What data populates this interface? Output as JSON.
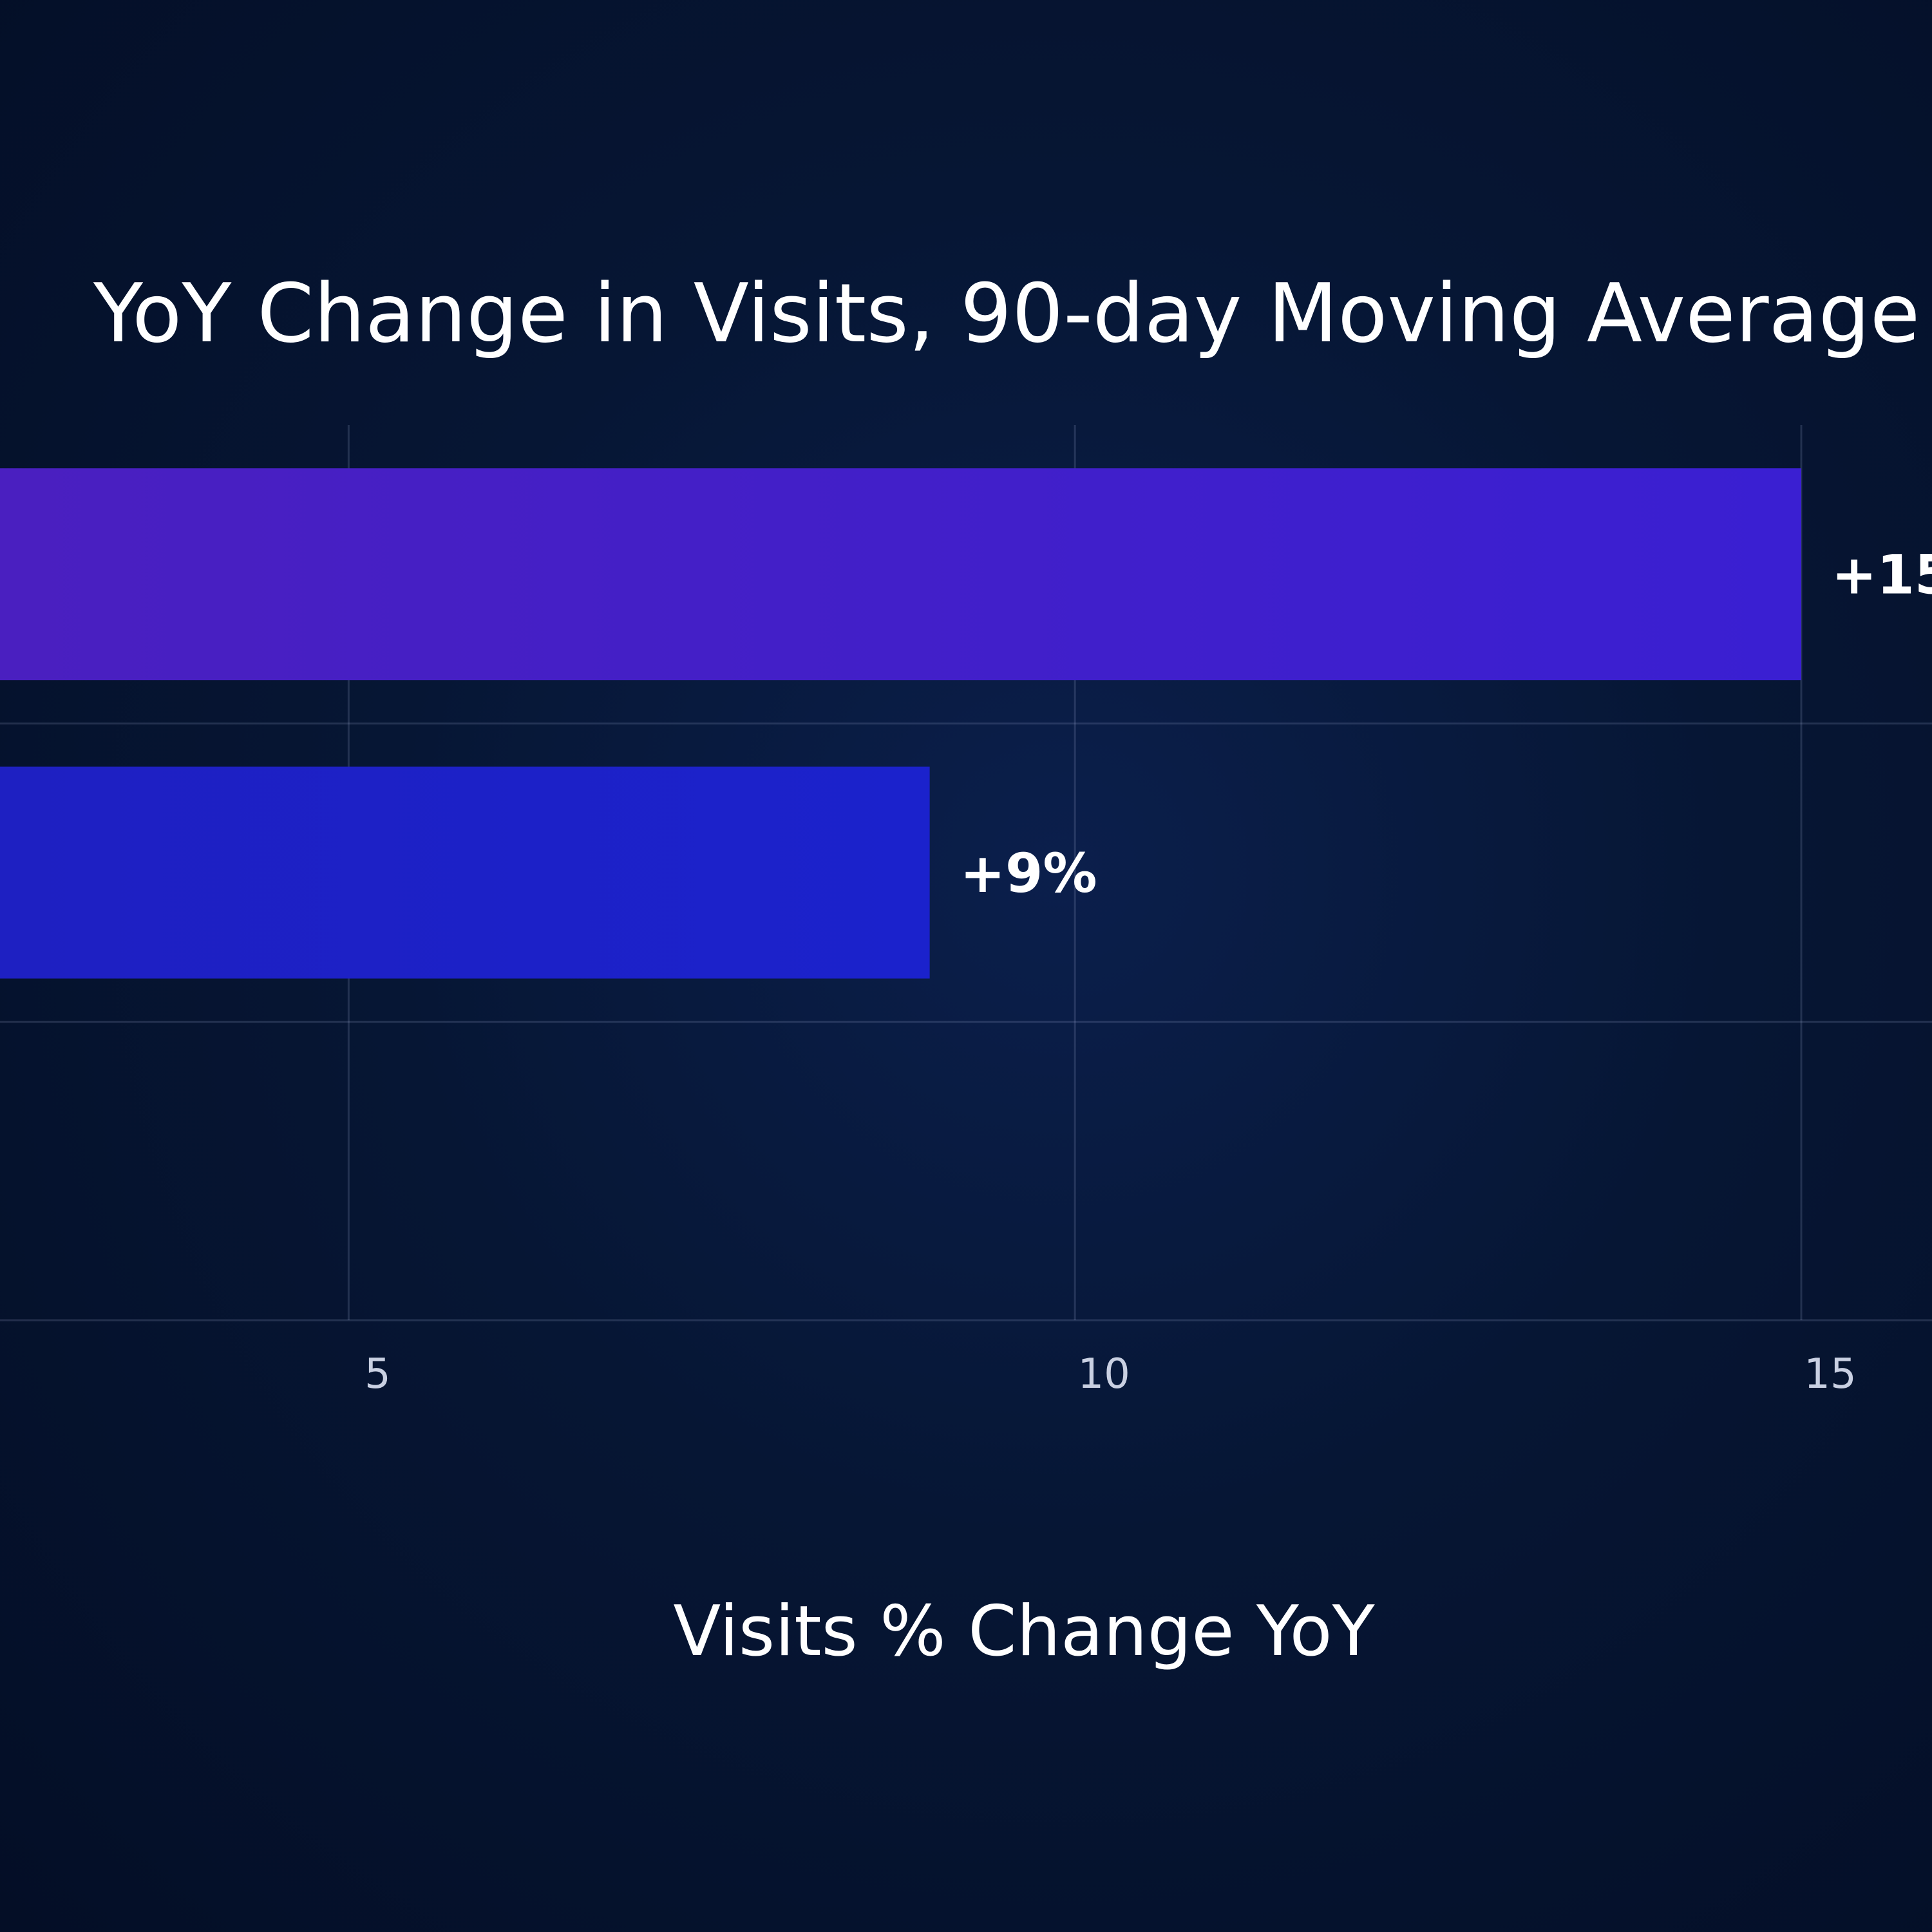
{
  "chart_data": {
    "type": "bar",
    "orientation": "horizontal",
    "title": "YoY Change in Visits, 90-day Moving Average",
    "xlabel": "Visits % Change YoY",
    "ylabel": "",
    "categories": [
      "",
      "",
      ""
    ],
    "values": [
      15,
      9,
      null
    ],
    "data_labels": [
      "+15",
      "+9%",
      ""
    ],
    "xticks": [
      5,
      10,
      15
    ],
    "xtick_labels": [
      "5",
      "10",
      "15"
    ],
    "xlim": [
      2.6,
      15.9
    ],
    "grid": true,
    "colors": [
      "#3a1fd2",
      "#1b22cc",
      "#1b22cc"
    ],
    "gradient_start_colors": [
      "#4a1fc0",
      "#1e20c2",
      "#1e20c2"
    ]
  }
}
